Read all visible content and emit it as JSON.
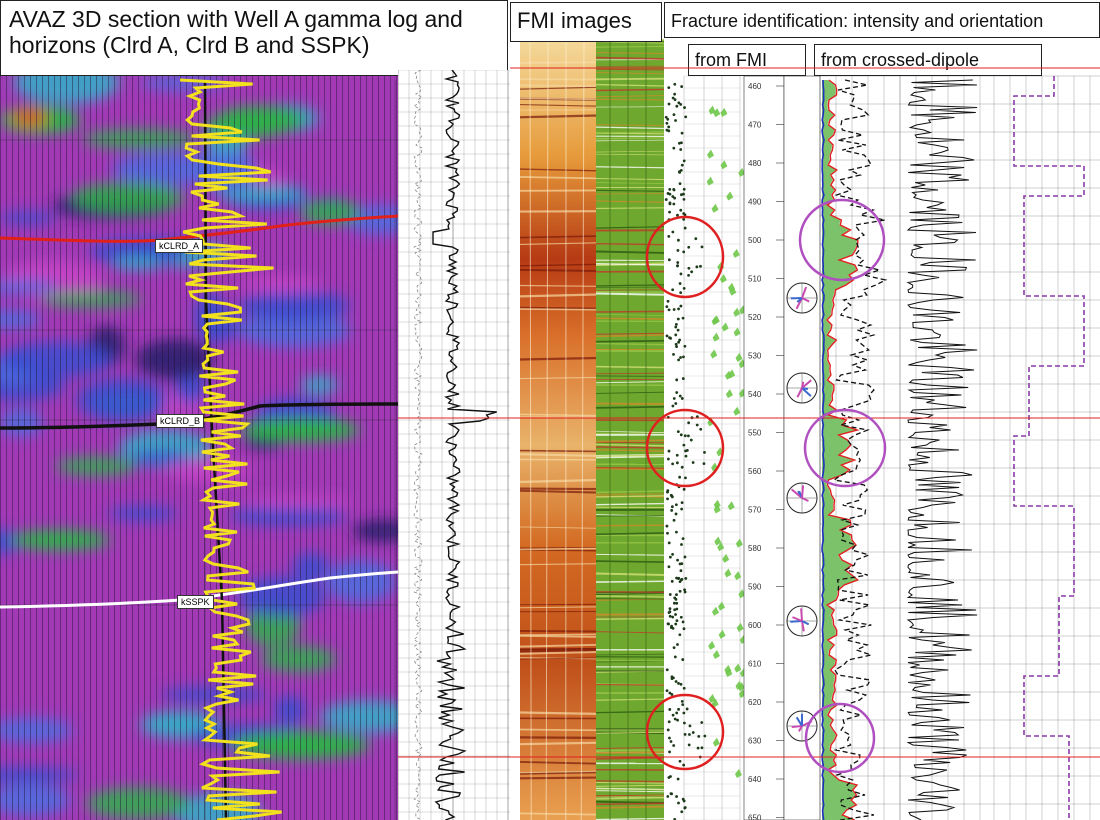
{
  "titles": {
    "avaz": "AVAZ 3D section with Well A gamma log and horizons (Clrd A, Clrd B and SSPK)",
    "fmi": "FMI images",
    "fracture": "Fracture identification: intensity and orientation",
    "from_fmi": "from FMI",
    "from_dipole": "from crossed-dipole"
  },
  "horizons": [
    {
      "name": "kCLRD_A",
      "color": "#e0201a"
    },
    {
      "name": "kCLRD_B",
      "color": "#111111"
    },
    {
      "name": "kSSPK",
      "color": "#ffffff"
    }
  ],
  "depth_ticks": [
    "460",
    "470",
    "480",
    "490",
    "500",
    "510",
    "520",
    "530",
    "540",
    "550",
    "560",
    "570",
    "580",
    "590",
    "600",
    "610",
    "620",
    "630",
    "640",
    "650"
  ],
  "colors": {
    "avaz_purple": "#a33bb8",
    "avaz_blue": "#3a4fd0",
    "avaz_green": "#2fb04a",
    "gamma_log": "#f2e21e",
    "fmi_orange": "#d8701a",
    "fmi_green": "#5aa02a",
    "circle_red": "#e02020",
    "circle_purple": "#b04fc0",
    "intensity_fill": "#7cc26a"
  }
}
